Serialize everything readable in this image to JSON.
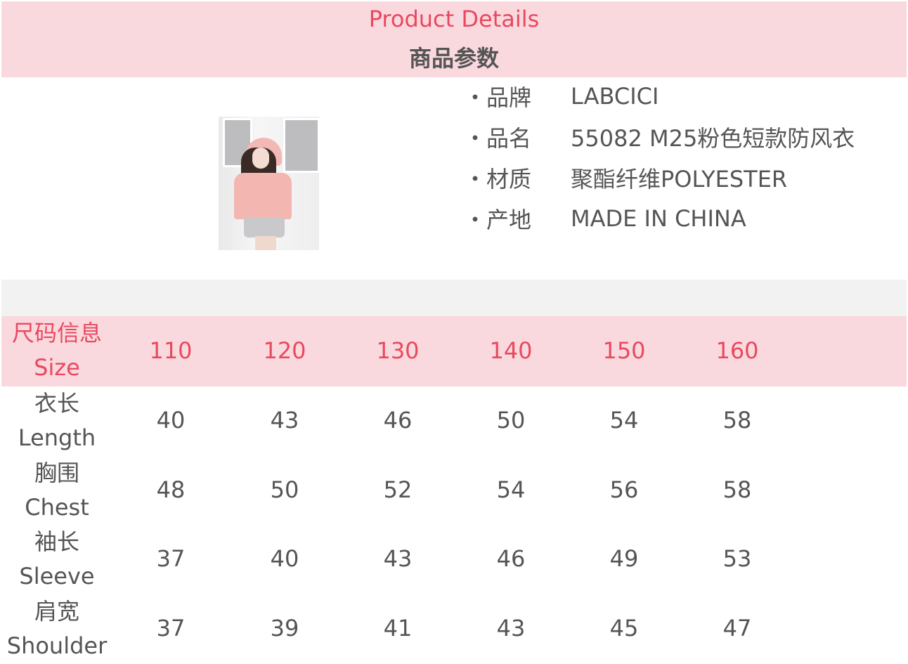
{
  "header": {
    "title_en": "Product Details",
    "title_cn": "商品参数"
  },
  "product_image": {
    "alt": "girl wearing pink short windbreaker"
  },
  "info": [
    {
      "key": "・品牌",
      "value": "LABCICI"
    },
    {
      "key": "・品名",
      "value": "55082  M25粉色短款防风衣"
    },
    {
      "key": "・材质",
      "value": "聚酯纤维POLYESTER"
    },
    {
      "key": "・产地",
      "value": "MADE  IN  CHINA"
    }
  ],
  "size_table": {
    "header": {
      "label_cn": "尺码信息",
      "label_en": "Size",
      "sizes": [
        "110",
        "120",
        "130",
        "140",
        "150",
        "160"
      ]
    },
    "rows": [
      {
        "label_cn": "衣长",
        "label_en": "Length",
        "values": [
          "40",
          "43",
          "46",
          "50",
          "54",
          "58"
        ]
      },
      {
        "label_cn": "胸围",
        "label_en": "Chest",
        "values": [
          "48",
          "50",
          "52",
          "54",
          "56",
          "58"
        ]
      },
      {
        "label_cn": "袖长",
        "label_en": "Sleeve",
        "values": [
          "37",
          "40",
          "43",
          "46",
          "49",
          "53"
        ]
      },
      {
        "label_cn": "肩宽",
        "label_en": "Shoulder",
        "values": [
          "37",
          "39",
          "41",
          "43",
          "45",
          "47"
        ]
      }
    ]
  },
  "colors": {
    "header_bg": "#fad9de",
    "accent": "#e8495f",
    "text": "#555555",
    "band": "#f2f2f2"
  }
}
